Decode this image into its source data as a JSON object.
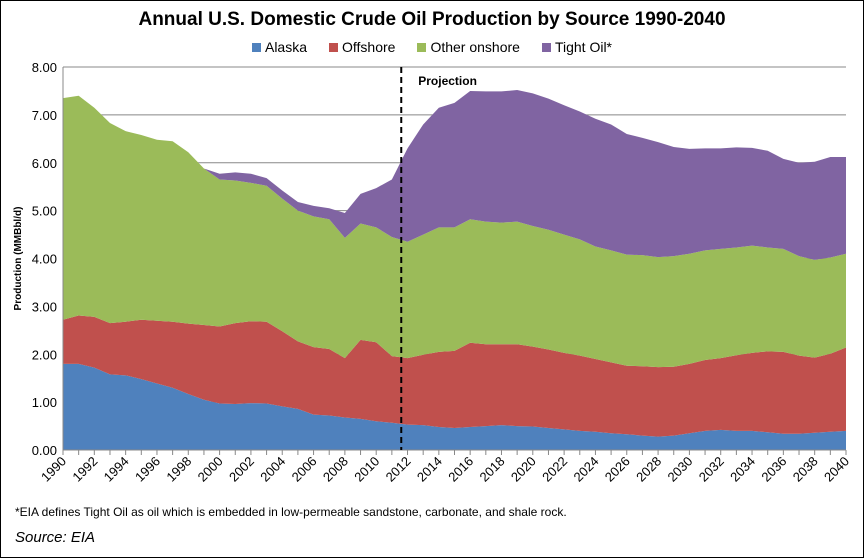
{
  "chart_data": {
    "type": "area",
    "stacked": true,
    "title": "Annual U.S. Domestic Crude Oil Production by Source 1990-2040",
    "ylabel": "Production (MMBbl/d)",
    "xlabel": "",
    "ylim": [
      0,
      8
    ],
    "xlim": [
      1990,
      2040
    ],
    "yticks": [
      "0.00",
      "1.00",
      "2.00",
      "3.00",
      "4.00",
      "5.00",
      "6.00",
      "7.00",
      "8.00"
    ],
    "xticks": [
      1990,
      1992,
      1994,
      1996,
      1998,
      2000,
      2002,
      2004,
      2006,
      2008,
      2010,
      2012,
      2014,
      2016,
      2018,
      2020,
      2022,
      2024,
      2026,
      2028,
      2030,
      2032,
      2034,
      2036,
      2038,
      2040
    ],
    "grid": "horizontal",
    "legend": "top",
    "annotation": {
      "text": "Projection",
      "x": 2011.6
    },
    "x": [
      1990,
      1991,
      1992,
      1993,
      1994,
      1995,
      1996,
      1997,
      1998,
      1999,
      2000,
      2001,
      2002,
      2003,
      2004,
      2005,
      2006,
      2007,
      2008,
      2009,
      2010,
      2011,
      2012,
      2013,
      2014,
      2015,
      2016,
      2017,
      2018,
      2019,
      2020,
      2021,
      2022,
      2023,
      2024,
      2025,
      2026,
      2027,
      2028,
      2029,
      2030,
      2031,
      2032,
      2033,
      2034,
      2035,
      2036,
      2037,
      2038,
      2039,
      2040
    ],
    "series": [
      {
        "name": "Alaska",
        "color": "#4f81bd",
        "values": [
          1.8,
          1.8,
          1.72,
          1.58,
          1.56,
          1.48,
          1.39,
          1.3,
          1.17,
          1.05,
          0.97,
          0.96,
          0.98,
          0.97,
          0.91,
          0.86,
          0.74,
          0.72,
          0.68,
          0.65,
          0.6,
          0.57,
          0.53,
          0.52,
          0.48,
          0.46,
          0.48,
          0.5,
          0.52,
          0.5,
          0.49,
          0.46,
          0.43,
          0.4,
          0.38,
          0.35,
          0.33,
          0.3,
          0.28,
          0.3,
          0.35,
          0.4,
          0.42,
          0.4,
          0.4,
          0.37,
          0.34,
          0.34,
          0.36,
          0.38,
          0.4
        ]
      },
      {
        "name": "Offshore",
        "color": "#c0504d",
        "values": [
          0.92,
          1.01,
          1.06,
          1.07,
          1.12,
          1.24,
          1.31,
          1.38,
          1.47,
          1.56,
          1.61,
          1.69,
          1.71,
          1.71,
          1.57,
          1.41,
          1.41,
          1.39,
          1.24,
          1.65,
          1.65,
          1.39,
          1.39,
          1.47,
          1.57,
          1.61,
          1.76,
          1.71,
          1.69,
          1.71,
          1.67,
          1.64,
          1.6,
          1.57,
          1.52,
          1.48,
          1.43,
          1.45,
          1.45,
          1.44,
          1.45,
          1.48,
          1.5,
          1.58,
          1.63,
          1.69,
          1.71,
          1.63,
          1.57,
          1.63,
          1.74
        ]
      },
      {
        "name": "Other onshore",
        "color": "#9bbb59",
        "values": [
          4.63,
          4.59,
          4.37,
          4.18,
          3.98,
          3.86,
          3.78,
          3.77,
          3.58,
          3.27,
          3.07,
          2.98,
          2.89,
          2.84,
          2.77,
          2.73,
          2.73,
          2.71,
          2.51,
          2.43,
          2.4,
          2.49,
          2.43,
          2.51,
          2.6,
          2.58,
          2.58,
          2.56,
          2.54,
          2.56,
          2.52,
          2.5,
          2.47,
          2.43,
          2.35,
          2.34,
          2.32,
          2.32,
          2.3,
          2.31,
          2.3,
          2.29,
          2.28,
          2.25,
          2.24,
          2.17,
          2.15,
          2.08,
          2.04,
          2.01,
          1.96
        ]
      },
      {
        "name": "Tight Oil*",
        "color": "#8064a2",
        "values": [
          0,
          0,
          0,
          0,
          0,
          0,
          0,
          0,
          0,
          0,
          0.12,
          0.17,
          0.19,
          0.16,
          0.17,
          0.18,
          0.22,
          0.23,
          0.52,
          0.62,
          0.82,
          1.2,
          1.95,
          2.3,
          2.5,
          2.6,
          2.68,
          2.72,
          2.74,
          2.75,
          2.77,
          2.74,
          2.7,
          2.67,
          2.67,
          2.63,
          2.52,
          2.45,
          2.4,
          2.28,
          2.19,
          2.13,
          2.1,
          2.09,
          2.04,
          2.02,
          1.88,
          1.95,
          2.05,
          2.1,
          2.02
        ]
      }
    ]
  },
  "footnote": "*EIA defines Tight Oil as oil which is embedded in low-permeable sandstone, carbonate, and shale rock.",
  "source": "Source: EIA"
}
